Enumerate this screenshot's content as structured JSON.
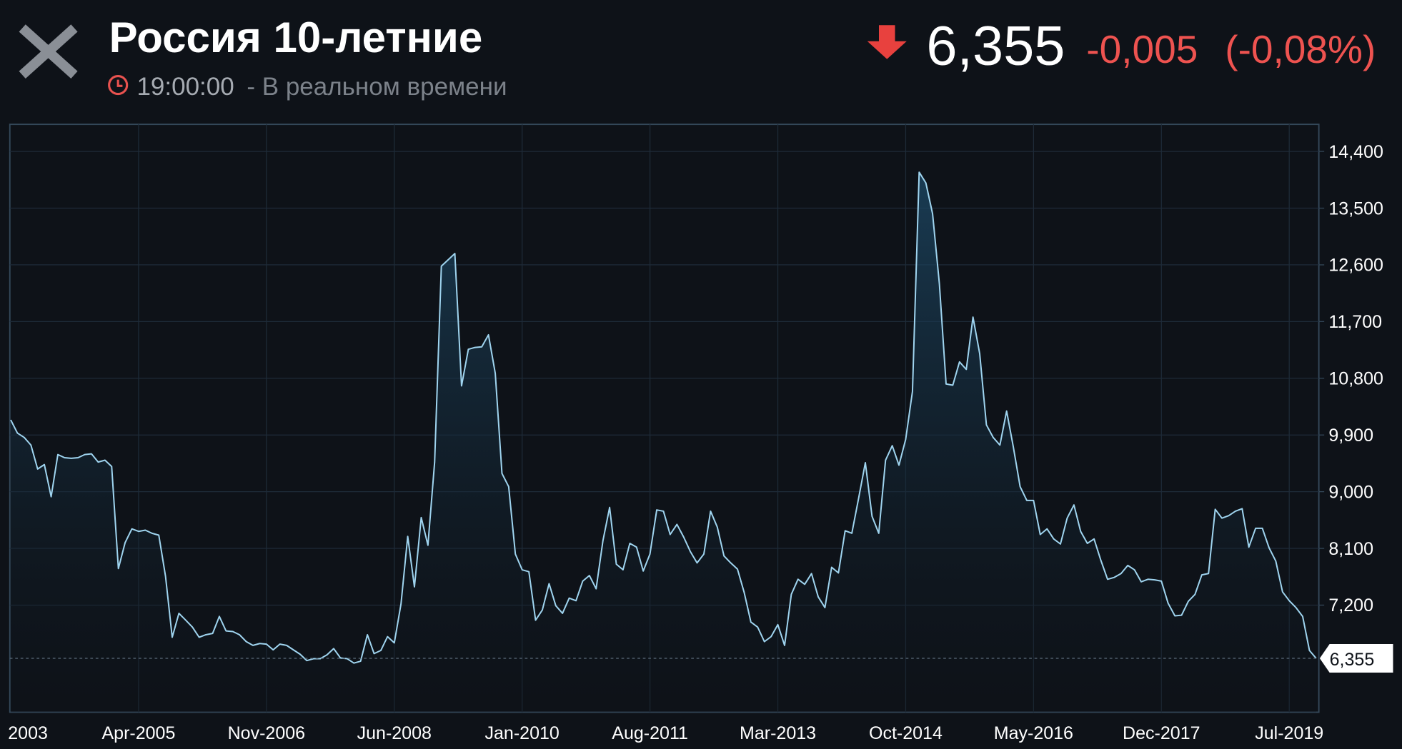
{
  "header": {
    "title": "Россия 10-летние",
    "time": "19:00:00",
    "time_note": "- В реальном времени",
    "price": "6,355",
    "change": "-0,005",
    "change_pct": "(-0,08%)"
  },
  "chart_data": {
    "type": "line",
    "color": "#9fd4ef",
    "grid": true,
    "categories": [
      "2003",
      null,
      null,
      null,
      null,
      null,
      null,
      null,
      null,
      null,
      null,
      null,
      null,
      null,
      null,
      null,
      null,
      null,
      null,
      "Apr-2005",
      null,
      null,
      null,
      null,
      null,
      null,
      null,
      null,
      null,
      null,
      null,
      null,
      null,
      null,
      null,
      null,
      null,
      null,
      "Nov-2006",
      null,
      null,
      null,
      null,
      null,
      null,
      null,
      null,
      null,
      null,
      null,
      null,
      null,
      null,
      null,
      null,
      null,
      null,
      "Jun-2008",
      null,
      null,
      null,
      null,
      null,
      null,
      null,
      null,
      null,
      null,
      null,
      null,
      null,
      null,
      null,
      null,
      null,
      null,
      "Jan-2010",
      null,
      null,
      null,
      null,
      null,
      null,
      null,
      null,
      null,
      null,
      null,
      null,
      null,
      null,
      null,
      null,
      null,
      null,
      "Aug-2011",
      null,
      null,
      null,
      null,
      null,
      null,
      null,
      null,
      null,
      null,
      null,
      null,
      null,
      null,
      null,
      null,
      null,
      null,
      "Mar-2013",
      null,
      null,
      null,
      null,
      null,
      null,
      null,
      null,
      null,
      null,
      null,
      null,
      null,
      null,
      null,
      null,
      null,
      null,
      "Oct-2014",
      null,
      null,
      null,
      null,
      null,
      null,
      null,
      null,
      null,
      null,
      null,
      null,
      null,
      null,
      null,
      null,
      null,
      null,
      "May-2016",
      null,
      null,
      null,
      null,
      null,
      null,
      null,
      null,
      null,
      null,
      null,
      null,
      null,
      null,
      null,
      null,
      null,
      null,
      "Dec-2017",
      null,
      null,
      null,
      null,
      null,
      null,
      null,
      null,
      null,
      null,
      null,
      null,
      null,
      null,
      null,
      null,
      null,
      null,
      "Jul-2019",
      null,
      null,
      null,
      null
    ],
    "values": [
      10140,
      9930,
      9860,
      9740,
      9360,
      9430,
      8920,
      9590,
      9540,
      9530,
      9540,
      9590,
      9600,
      9470,
      9500,
      9400,
      7780,
      8190,
      8410,
      8370,
      8390,
      8340,
      8310,
      7660,
      6690,
      7070,
      6960,
      6850,
      6690,
      6730,
      6750,
      7020,
      6790,
      6780,
      6730,
      6620,
      6560,
      6590,
      6580,
      6490,
      6580,
      6560,
      6490,
      6420,
      6320,
      6350,
      6350,
      6410,
      6510,
      6360,
      6350,
      6280,
      6310,
      6730,
      6430,
      6480,
      6700,
      6600,
      7220,
      8290,
      7490,
      8590,
      8150,
      9470,
      12580,
      12680,
      12780,
      10680,
      11260,
      11290,
      11300,
      11490,
      10880,
      9290,
      9080,
      8010,
      7760,
      7730,
      6960,
      7120,
      7540,
      7190,
      7070,
      7310,
      7270,
      7580,
      7670,
      7460,
      8220,
      8750,
      7850,
      7760,
      8180,
      8120,
      7740,
      8010,
      8710,
      8690,
      8320,
      8480,
      8280,
      8050,
      7870,
      8010,
      8690,
      8440,
      7980,
      7870,
      7770,
      7400,
      6930,
      6850,
      6620,
      6700,
      6890,
      6560,
      7370,
      7610,
      7530,
      7700,
      7330,
      7160,
      7800,
      7710,
      8380,
      8340,
      8890,
      9460,
      8610,
      8340,
      9500,
      9730,
      9420,
      9830,
      10590,
      14070,
      13900,
      13410,
      12300,
      10710,
      10690,
      11060,
      10940,
      11770,
      11190,
      10060,
      9860,
      9740,
      10280,
      9710,
      9080,
      8860,
      8860,
      8320,
      8410,
      8250,
      8170,
      8580,
      8790,
      8370,
      8180,
      8250,
      7910,
      7610,
      7640,
      7700,
      7830,
      7760,
      7570,
      7610,
      7600,
      7580,
      7230,
      7030,
      7040,
      7260,
      7370,
      7680,
      7700,
      8720,
      8580,
      8620,
      8690,
      8730,
      8120,
      8420,
      8420,
      8110,
      7900,
      7410,
      7270,
      7160,
      7020,
      6480,
      6355
    ],
    "ylim": [
      5500,
      14830
    ],
    "yticks": [
      {
        "value": 7200,
        "label": "7,200"
      },
      {
        "value": 8100,
        "label": "8,100"
      },
      {
        "value": 9000,
        "label": "9,000"
      },
      {
        "value": 9900,
        "label": "9,900"
      },
      {
        "value": 10800,
        "label": "10,800"
      },
      {
        "value": 11700,
        "label": "11,700"
      },
      {
        "value": 12600,
        "label": "12,600"
      },
      {
        "value": 13500,
        "label": "13,500"
      },
      {
        "value": 14400,
        "label": "14,400"
      }
    ],
    "current": {
      "value": 6355,
      "label": "6,355"
    }
  }
}
